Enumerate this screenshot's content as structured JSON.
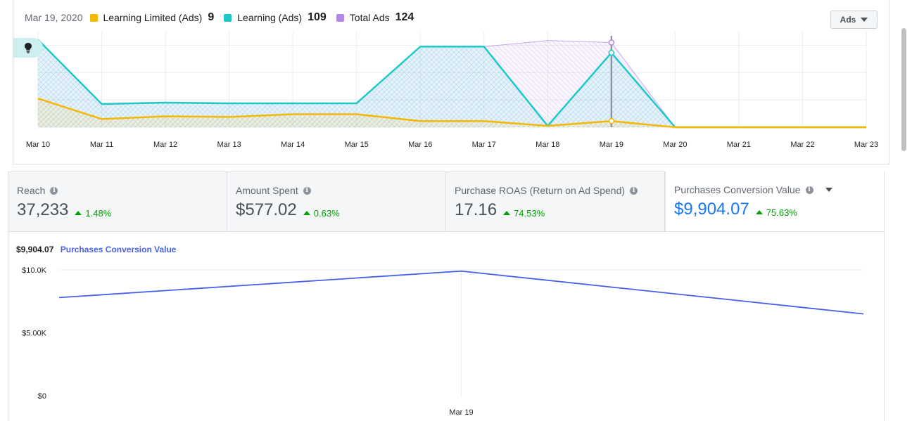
{
  "legend": {
    "date": "Mar 19, 2020",
    "items": [
      {
        "label": "Learning Limited (Ads)",
        "count": "9",
        "color": "#f5b800"
      },
      {
        "label": "Learning (Ads)",
        "count": "109",
        "color": "#1fc8c8"
      },
      {
        "label": "Total Ads",
        "count": "124",
        "color": "#b488e8"
      }
    ]
  },
  "ads_button": {
    "label": "Ads",
    "icon": "caret-down-icon"
  },
  "bulb_icon": "lightbulb-icon",
  "metrics": [
    {
      "label": "Reach",
      "value": "37,233",
      "change": "1.48%"
    },
    {
      "label": "Amount Spent",
      "value": "$577.02",
      "change": "0.63%"
    },
    {
      "label": "Purchase ROAS (Return on Ad Spend)",
      "value": "17.16",
      "change": "74.53%"
    },
    {
      "label": "Purchases Conversion Value",
      "value": "$9,904.07",
      "change": "75.63%"
    }
  ],
  "bottom": {
    "value": "$9,904.07",
    "metric_name": "Purchases Conversion Value"
  },
  "chart_data": [
    {
      "type": "area",
      "categories": [
        "Mar 10",
        "Mar 11",
        "Mar 12",
        "Mar 13",
        "Mar 14",
        "Mar 15",
        "Mar 16",
        "Mar 17",
        "Mar 18",
        "Mar 19",
        "Mar 20",
        "Mar 21",
        "Mar 22",
        "Mar 23"
      ],
      "ylim": [
        0,
        140
      ],
      "grid": true,
      "highlight_category": "Mar 19",
      "series": [
        {
          "name": "Total Ads",
          "color": "#b488e8",
          "values": [
            128,
            34,
            36,
            35,
            35,
            35,
            118,
            118,
            127,
            124,
            0,
            0,
            0,
            0
          ]
        },
        {
          "name": "Learning (Ads)",
          "color": "#1fc8c8",
          "values": [
            128,
            34,
            36,
            35,
            35,
            35,
            118,
            118,
            2,
            109,
            0,
            0,
            0,
            0
          ]
        },
        {
          "name": "Learning Limited (Ads)",
          "color": "#f5b800",
          "values": [
            42,
            12,
            16,
            15,
            19,
            19,
            9,
            9,
            2,
            9,
            0,
            0,
            0,
            0
          ]
        }
      ]
    },
    {
      "type": "line",
      "title": "Purchases Conversion Value",
      "categories": [
        "Mar 19"
      ],
      "yticks": [
        "$0",
        "$5.00K",
        "$10.0K"
      ],
      "ylim": [
        0,
        10000
      ],
      "series": [
        {
          "name": "Purchases Conversion Value",
          "color": "#4760ea",
          "points": [
            [
              -0.5,
              7800
            ],
            [
              0,
              9904.07
            ],
            [
              0.5,
              6500
            ]
          ]
        }
      ]
    }
  ]
}
